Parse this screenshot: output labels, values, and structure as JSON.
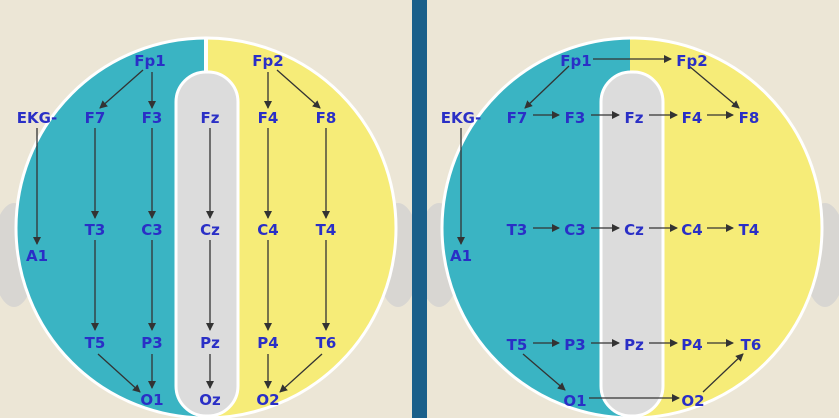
{
  "colors": {
    "background": "#ece6d6",
    "left_hemisphere": "#3ab4c3",
    "right_hemisphere": "#f6ec78",
    "midline": "#dcdcdc",
    "label": "#2a2fc6",
    "arrow": "#333333",
    "ear": "#d8d6d2"
  },
  "left_montage": {
    "labels": {
      "fp1": "Fp1",
      "fp2": "Fp2",
      "ekg": "EKG-",
      "f7": "F7",
      "f3": "F3",
      "fz": "Fz",
      "f4": "F4",
      "f8": "F8",
      "a1": "A1",
      "t3": "T3",
      "c3": "C3",
      "cz": "Cz",
      "c4": "C4",
      "t4": "T4",
      "t5": "T5",
      "p3": "P3",
      "pz": "Pz",
      "p4": "P4",
      "t6": "T6",
      "o1": "O1",
      "oz": "Oz",
      "o2": "O2"
    }
  },
  "right_montage": {
    "labels": {
      "fp1": "Fp1",
      "fp2": "Fp2",
      "ekg": "EKG-",
      "f7": "F7",
      "f3": "F3",
      "fz": "Fz",
      "f4": "F4",
      "f8": "F8",
      "a1": "A1",
      "t3": "T3",
      "c3": "C3",
      "cz": "Cz",
      "c4": "C4",
      "t4": "T4",
      "t5": "T5",
      "p3": "P3",
      "pz": "Pz",
      "p4": "P4",
      "t6": "T6",
      "o1": "O1",
      "o2": "O2"
    }
  }
}
